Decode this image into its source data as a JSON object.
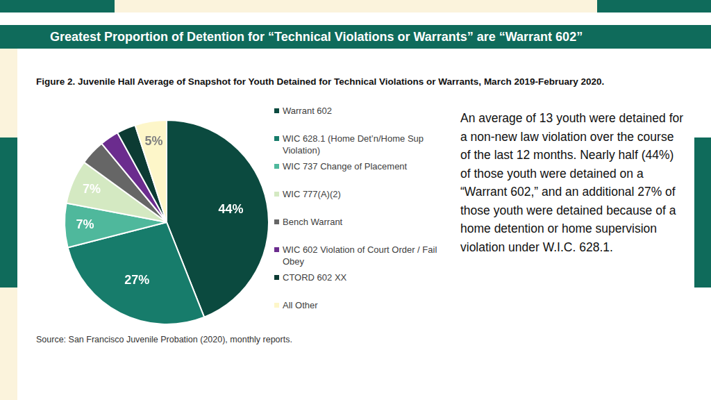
{
  "header": {
    "title": "Greatest Proportion of Detention for “Technical Violations or Warrants” are “Warrant 602”"
  },
  "chart_data": {
    "type": "pie",
    "title": "Figure 2. Juvenile Hall Average of Snapshot for Youth Detained for Technical Violations or Warrants, March 2019-February 2020.",
    "categories": [
      "Warrant 602",
      "WIC 628.1 (Home Det’n/Home Sup Violation)",
      "WIC 737 Change of Placement",
      "WIC 777(A)(2)",
      "Bench Warrant",
      "WIC 602 Violation of Court Order / Fail Obey",
      "CTORD 602 XX",
      "All Other"
    ],
    "values": [
      44,
      27,
      7,
      7,
      4,
      3,
      3,
      5
    ],
    "value_labels": [
      "44%",
      "27%",
      "7%",
      "7%",
      null,
      null,
      null,
      "5%"
    ],
    "colors": [
      "#0b4a3f",
      "#177c6b",
      "#4fb89c",
      "#d4e9c2",
      "#666666",
      "#6b2c8e",
      "#0c3b33",
      "#fdf6c9"
    ],
    "data_labels": true,
    "legend": "right"
  },
  "text": "An average of 13 youth were detained for a non-new law violation over the course of the last 12 months.  Nearly half (44%) of those youth were detained on a “Warrant 602,” and an additional 27% of those youth were detained because of a home detention or home supervision violation under W.I.C. 628.1.",
  "source": "Source: San Francisco Juvenile Probation (2020), monthly reports."
}
